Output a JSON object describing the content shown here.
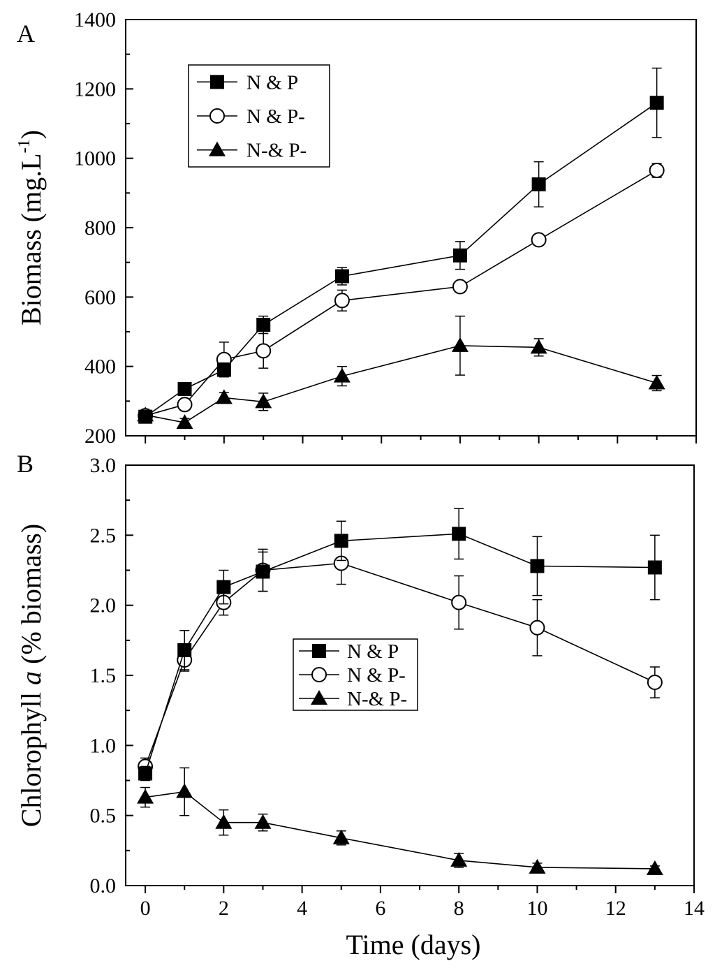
{
  "chart_data": [
    {
      "type": "line",
      "panel_label": "A",
      "ylabel": "Biomass (mg.L",
      "ylabel_superscript": "-1",
      "ylabel_suffix": ")",
      "xlim": [
        -0.5,
        14
      ],
      "ylim": [
        200,
        1400
      ],
      "x_ticks": [
        0,
        2,
        4,
        6,
        8,
        10,
        12,
        14
      ],
      "x_ticks_labeled": false,
      "y_ticks": [
        200,
        400,
        600,
        800,
        1000,
        1200,
        1400
      ],
      "legend_position": "top-left",
      "x": [
        0,
        1,
        2,
        3,
        5,
        8,
        10,
        13
      ],
      "series": [
        {
          "name": "N & P",
          "marker": "filled-square",
          "values": [
            255,
            335,
            390,
            520,
            660,
            720,
            925,
            1160
          ],
          "errors": [
            10,
            15,
            20,
            25,
            25,
            40,
            65,
            100
          ]
        },
        {
          "name": "N & P-",
          "marker": "open-circle",
          "values": [
            258,
            290,
            420,
            445,
            590,
            630,
            765,
            965
          ],
          "errors": [
            10,
            15,
            50,
            50,
            30,
            12,
            12,
            20
          ]
        },
        {
          "name": "N-& P-",
          "marker": "filled-triangle",
          "values": [
            260,
            238,
            310,
            298,
            372,
            460,
            455,
            352
          ],
          "errors": [
            10,
            12,
            15,
            25,
            28,
            85,
            25,
            22
          ]
        }
      ]
    },
    {
      "type": "line",
      "panel_label": "B",
      "ylabel_prefix": "Chlorophyll ",
      "ylabel_italic": "a",
      "ylabel_suffix": " (% biomass)",
      "xlabel": "Time (days)",
      "xlim": [
        -0.5,
        14
      ],
      "ylim": [
        0.0,
        3.0
      ],
      "x_ticks": [
        0,
        2,
        4,
        6,
        8,
        10,
        12,
        14
      ],
      "x_ticks_labeled": true,
      "y_ticks": [
        0.0,
        0.5,
        1.0,
        1.5,
        2.0,
        2.5,
        3.0
      ],
      "y_tick_labels": [
        "0.0",
        "0.5",
        "1.0",
        "1.5",
        "2.0",
        "2.5",
        "3.0"
      ],
      "legend_position": "center",
      "x": [
        0,
        1,
        2,
        3,
        5,
        8,
        10,
        13
      ],
      "series": [
        {
          "name": "N & P",
          "marker": "filled-square",
          "values": [
            0.8,
            1.68,
            2.13,
            2.24,
            2.46,
            2.51,
            2.28,
            2.27
          ],
          "errors": [
            0.05,
            0.14,
            0.12,
            0.14,
            0.14,
            0.18,
            0.21,
            0.23
          ]
        },
        {
          "name": "N & P-",
          "marker": "open-circle",
          "values": [
            0.85,
            1.61,
            2.02,
            2.25,
            2.3,
            2.02,
            1.84,
            1.45
          ],
          "errors": [
            0.06,
            0.08,
            0.09,
            0.15,
            0.15,
            0.19,
            0.2,
            0.11
          ]
        },
        {
          "name": "N-& P-",
          "marker": "filled-triangle",
          "values": [
            0.63,
            0.67,
            0.45,
            0.45,
            0.34,
            0.18,
            0.13,
            0.12
          ],
          "errors": [
            0.07,
            0.17,
            0.09,
            0.06,
            0.05,
            0.05,
            0.03,
            0.02
          ]
        }
      ]
    }
  ]
}
